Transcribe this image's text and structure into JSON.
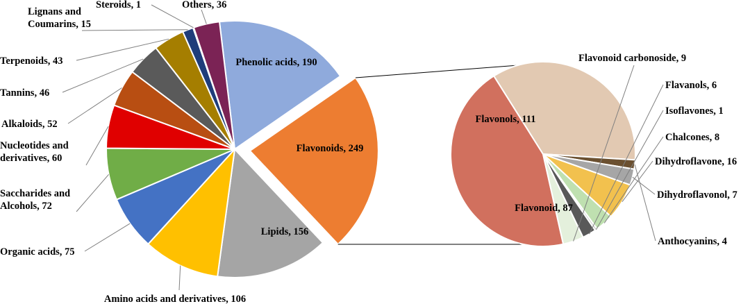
{
  "colors": {
    "phenolic": "#8faadc",
    "flavonoids": "#ed7d31",
    "lipids": "#a5a5a5",
    "amino": "#ffc000",
    "organic": "#4472c4",
    "saccharides": "#70ad47",
    "nucleotides": "#e00000",
    "alkaloids": "#b84e12",
    "tannins": "#5a5a5a",
    "terpenoids": "#a57e00",
    "lignans": "#1f3d7a",
    "steroids": "#00b0f0",
    "others": "#7b2355",
    "flavonols": "#d1705e",
    "flavonoid_sub": "#e2c9b2",
    "anthocyanins": "#6b5030",
    "dihydroflavonol": "#a6a6a6",
    "dihydroflavone": "#f2c14e",
    "chalcones": "#bfe0b0",
    "isoflavones": "#cccccc",
    "flavanols": "#595959",
    "flavonoid_carbonoside": "#e4f0dc"
  },
  "chart_data": [
    {
      "type": "pie",
      "title": "",
      "slices": [
        {
          "label": "Phenolic acids, 190",
          "name": "Phenolic acids",
          "value": 190,
          "color": "phenolic"
        },
        {
          "label": "Flavonoids, 249",
          "name": "Flavonoids",
          "value": 249,
          "color": "flavonoids",
          "exploded": true
        },
        {
          "label": "Lipids, 156",
          "name": "Lipids",
          "value": 156,
          "color": "lipids"
        },
        {
          "label": "Amino acids and derivatives, 106",
          "name": "Amino acids and derivatives",
          "value": 106,
          "color": "amino"
        },
        {
          "label": "Organic acids, 75",
          "name": "Organic acids",
          "value": 75,
          "color": "organic"
        },
        {
          "label": "Saccharides and\nAlcohols, 72",
          "name": "Saccharides and Alcohols",
          "value": 72,
          "color": "saccharides"
        },
        {
          "label": "Nucleotides and\nderivatives, 60",
          "name": "Nucleotides and derivatives",
          "value": 60,
          "color": "nucleotides"
        },
        {
          "label": "Alkaloids, 52",
          "name": "Alkaloids",
          "value": 52,
          "color": "alkaloids"
        },
        {
          "label": "Tannins, 46",
          "name": "Tannins",
          "value": 46,
          "color": "tannins"
        },
        {
          "label": "Terpenoids, 43",
          "name": "Terpenoids",
          "value": 43,
          "color": "terpenoids"
        },
        {
          "label": "Lignans and\nCoumarins, 15",
          "name": "Lignans and Coumarins",
          "value": 15,
          "color": "lignans"
        },
        {
          "label": "Steroids, 1",
          "name": "Steroids",
          "value": 1,
          "color": "steroids"
        },
        {
          "label": "Others, 36",
          "name": "Others",
          "value": 36,
          "color": "others"
        }
      ]
    },
    {
      "type": "pie",
      "title": "",
      "slices": [
        {
          "label": "Flavonols, 111",
          "name": "Flavonols",
          "value": 111,
          "color": "flavonols"
        },
        {
          "label": "Flavonoid, 87",
          "name": "Flavonoid",
          "value": 87,
          "color": "flavonoid_sub"
        },
        {
          "label": "Anthocyanins, 4",
          "name": "Anthocyanins",
          "value": 4,
          "color": "anthocyanins"
        },
        {
          "label": "Dihydroflavonol, 7",
          "name": "Dihydroflavonol",
          "value": 7,
          "color": "dihydroflavonol"
        },
        {
          "label": "Dihydroflavone, 16",
          "name": "Dihydroflavone",
          "value": 16,
          "color": "dihydroflavone"
        },
        {
          "label": "Chalcones, 8",
          "name": "Chalcones",
          "value": 8,
          "color": "chalcones"
        },
        {
          "label": "Isoflavones, 1",
          "name": "Isoflavones",
          "value": 1,
          "color": "isoflavones"
        },
        {
          "label": "Flavanols, 6",
          "name": "Flavanols",
          "value": 6,
          "color": "flavanols"
        },
        {
          "label": "Flavonoid carbonoside, 9",
          "name": "Flavonoid carbonoside",
          "value": 9,
          "color": "flavonoid_carbonoside"
        }
      ]
    }
  ]
}
